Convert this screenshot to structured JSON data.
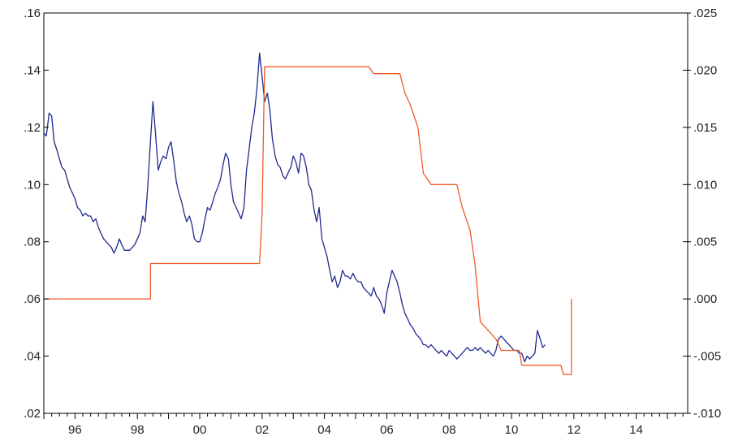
{
  "chart_data": {
    "type": "line",
    "title": "",
    "xlabel": "",
    "ylabel": "",
    "x_range": [
      1995.0,
      2015.65
    ],
    "ylim_left": [
      0.02,
      0.16
    ],
    "ylim_right": [
      -0.01,
      0.025
    ],
    "x_tick_labels": [
      {
        "x": 1996,
        "label": "96"
      },
      {
        "x": 1998,
        "label": "98"
      },
      {
        "x": 2000,
        "label": "00"
      },
      {
        "x": 2002,
        "label": "02"
      },
      {
        "x": 2004,
        "label": "04"
      },
      {
        "x": 2006,
        "label": "06"
      },
      {
        "x": 2008,
        "label": "08"
      },
      {
        "x": 2010,
        "label": "10"
      },
      {
        "x": 2012,
        "label": "12"
      },
      {
        "x": 2014,
        "label": "14"
      }
    ],
    "y_ticks_left": [
      {
        "v": 0.16,
        "label": ".16"
      },
      {
        "v": 0.14,
        "label": ".14"
      },
      {
        "v": 0.12,
        "label": ".12"
      },
      {
        "v": 0.1,
        "label": ".10"
      },
      {
        "v": 0.08,
        "label": ".08"
      },
      {
        "v": 0.06,
        "label": ".06"
      },
      {
        "v": 0.04,
        "label": ".04"
      },
      {
        "v": 0.02,
        "label": ".02"
      }
    ],
    "y_ticks_right": [
      {
        "v": 0.025,
        "label": ".025"
      },
      {
        "v": 0.02,
        "label": ".020"
      },
      {
        "v": 0.015,
        "label": ".015"
      },
      {
        "v": 0.01,
        "label": ".010"
      },
      {
        "v": 0.005,
        "label": ".005"
      },
      {
        "v": 0.0,
        "label": ".000"
      },
      {
        "v": -0.005,
        "label": "-.005"
      },
      {
        "v": -0.01,
        "label": "-.010"
      }
    ],
    "grid": false,
    "series": [
      {
        "axis": "left",
        "color": "#1f2a8c",
        "points": [
          [
            1995.0,
            0.118
          ],
          [
            1995.08,
            0.117
          ],
          [
            1995.17,
            0.125
          ],
          [
            1995.25,
            0.124
          ],
          [
            1995.33,
            0.115
          ],
          [
            1995.42,
            0.112
          ],
          [
            1995.5,
            0.109
          ],
          [
            1995.58,
            0.106
          ],
          [
            1995.67,
            0.105
          ],
          [
            1995.75,
            0.102
          ],
          [
            1995.83,
            0.099
          ],
          [
            1995.92,
            0.097
          ],
          [
            1996.0,
            0.095
          ],
          [
            1996.08,
            0.092
          ],
          [
            1996.17,
            0.091
          ],
          [
            1996.25,
            0.089
          ],
          [
            1996.33,
            0.09
          ],
          [
            1996.42,
            0.089
          ],
          [
            1996.5,
            0.089
          ],
          [
            1996.58,
            0.087
          ],
          [
            1996.67,
            0.088
          ],
          [
            1996.75,
            0.085
          ],
          [
            1996.83,
            0.083
          ],
          [
            1996.92,
            0.081
          ],
          [
            1997.0,
            0.08
          ],
          [
            1997.08,
            0.079
          ],
          [
            1997.17,
            0.078
          ],
          [
            1997.25,
            0.076
          ],
          [
            1997.33,
            0.078
          ],
          [
            1997.42,
            0.081
          ],
          [
            1997.5,
            0.079
          ],
          [
            1997.58,
            0.077
          ],
          [
            1997.67,
            0.077
          ],
          [
            1997.75,
            0.077
          ],
          [
            1997.83,
            0.078
          ],
          [
            1997.92,
            0.079
          ],
          [
            1998.0,
            0.081
          ],
          [
            1998.08,
            0.083
          ],
          [
            1998.17,
            0.089
          ],
          [
            1998.25,
            0.087
          ],
          [
            1998.33,
            0.099
          ],
          [
            1998.42,
            0.115
          ],
          [
            1998.5,
            0.129
          ],
          [
            1998.58,
            0.118
          ],
          [
            1998.67,
            0.105
          ],
          [
            1998.75,
            0.108
          ],
          [
            1998.83,
            0.11
          ],
          [
            1998.92,
            0.109
          ],
          [
            1999.0,
            0.113
          ],
          [
            1999.08,
            0.115
          ],
          [
            1999.17,
            0.108
          ],
          [
            1999.25,
            0.101
          ],
          [
            1999.33,
            0.097
          ],
          [
            1999.42,
            0.094
          ],
          [
            1999.5,
            0.09
          ],
          [
            1999.58,
            0.087
          ],
          [
            1999.67,
            0.089
          ],
          [
            1999.75,
            0.086
          ],
          [
            1999.83,
            0.081
          ],
          [
            1999.92,
            0.08
          ],
          [
            2000.0,
            0.08
          ],
          [
            2000.08,
            0.083
          ],
          [
            2000.17,
            0.088
          ],
          [
            2000.25,
            0.092
          ],
          [
            2000.33,
            0.091
          ],
          [
            2000.42,
            0.094
          ],
          [
            2000.5,
            0.097
          ],
          [
            2000.58,
            0.099
          ],
          [
            2000.67,
            0.102
          ],
          [
            2000.75,
            0.107
          ],
          [
            2000.83,
            0.111
          ],
          [
            2000.92,
            0.109
          ],
          [
            2001.0,
            0.1
          ],
          [
            2001.08,
            0.094
          ],
          [
            2001.17,
            0.092
          ],
          [
            2001.25,
            0.09
          ],
          [
            2001.33,
            0.088
          ],
          [
            2001.42,
            0.092
          ],
          [
            2001.5,
            0.105
          ],
          [
            2001.58,
            0.112
          ],
          [
            2001.67,
            0.12
          ],
          [
            2001.75,
            0.125
          ],
          [
            2001.83,
            0.133
          ],
          [
            2001.92,
            0.146
          ],
          [
            2002.0,
            0.138
          ],
          [
            2002.08,
            0.129
          ],
          [
            2002.17,
            0.132
          ],
          [
            2002.25,
            0.126
          ],
          [
            2002.33,
            0.116
          ],
          [
            2002.42,
            0.11
          ],
          [
            2002.5,
            0.107
          ],
          [
            2002.58,
            0.106
          ],
          [
            2002.67,
            0.103
          ],
          [
            2002.75,
            0.102
          ],
          [
            2002.83,
            0.104
          ],
          [
            2002.92,
            0.106
          ],
          [
            2003.0,
            0.11
          ],
          [
            2003.08,
            0.108
          ],
          [
            2003.17,
            0.104
          ],
          [
            2003.25,
            0.111
          ],
          [
            2003.33,
            0.11
          ],
          [
            2003.42,
            0.106
          ],
          [
            2003.5,
            0.1
          ],
          [
            2003.58,
            0.098
          ],
          [
            2003.67,
            0.091
          ],
          [
            2003.75,
            0.087
          ],
          [
            2003.83,
            0.092
          ],
          [
            2003.92,
            0.081
          ],
          [
            2004.0,
            0.078
          ],
          [
            2004.08,
            0.075
          ],
          [
            2004.17,
            0.07
          ],
          [
            2004.25,
            0.066
          ],
          [
            2004.33,
            0.068
          ],
          [
            2004.42,
            0.064
          ],
          [
            2004.5,
            0.066
          ],
          [
            2004.58,
            0.07
          ],
          [
            2004.67,
            0.068
          ],
          [
            2004.75,
            0.068
          ],
          [
            2004.83,
            0.067
          ],
          [
            2004.92,
            0.069
          ],
          [
            2005.0,
            0.067
          ],
          [
            2005.08,
            0.066
          ],
          [
            2005.17,
            0.066
          ],
          [
            2005.25,
            0.064
          ],
          [
            2005.33,
            0.063
          ],
          [
            2005.42,
            0.062
          ],
          [
            2005.5,
            0.061
          ],
          [
            2005.58,
            0.064
          ],
          [
            2005.67,
            0.061
          ],
          [
            2005.75,
            0.06
          ],
          [
            2005.83,
            0.058
          ],
          [
            2005.92,
            0.055
          ],
          [
            2006.0,
            0.062
          ],
          [
            2006.08,
            0.066
          ],
          [
            2006.17,
            0.07
          ],
          [
            2006.25,
            0.068
          ],
          [
            2006.33,
            0.066
          ],
          [
            2006.42,
            0.062
          ],
          [
            2006.5,
            0.058
          ],
          [
            2006.58,
            0.055
          ],
          [
            2006.67,
            0.053
          ],
          [
            2006.75,
            0.051
          ],
          [
            2006.83,
            0.05
          ],
          [
            2006.92,
            0.048
          ],
          [
            2007.0,
            0.047
          ],
          [
            2007.08,
            0.046
          ],
          [
            2007.17,
            0.044
          ],
          [
            2007.25,
            0.044
          ],
          [
            2007.33,
            0.043
          ],
          [
            2007.42,
            0.044
          ],
          [
            2007.5,
            0.043
          ],
          [
            2007.58,
            0.042
          ],
          [
            2007.67,
            0.041
          ],
          [
            2007.75,
            0.042
          ],
          [
            2007.83,
            0.041
          ],
          [
            2007.92,
            0.04
          ],
          [
            2008.0,
            0.042
          ],
          [
            2008.08,
            0.041
          ],
          [
            2008.17,
            0.04
          ],
          [
            2008.25,
            0.039
          ],
          [
            2008.33,
            0.04
          ],
          [
            2008.42,
            0.041
          ],
          [
            2008.5,
            0.042
          ],
          [
            2008.58,
            0.043
          ],
          [
            2008.67,
            0.042
          ],
          [
            2008.75,
            0.042
          ],
          [
            2008.83,
            0.043
          ],
          [
            2008.92,
            0.042
          ],
          [
            2009.0,
            0.043
          ],
          [
            2009.08,
            0.042
          ],
          [
            2009.17,
            0.041
          ],
          [
            2009.25,
            0.042
          ],
          [
            2009.33,
            0.041
          ],
          [
            2009.42,
            0.04
          ],
          [
            2009.5,
            0.042
          ],
          [
            2009.58,
            0.046
          ],
          [
            2009.67,
            0.047
          ],
          [
            2009.75,
            0.046
          ],
          [
            2009.83,
            0.045
          ],
          [
            2009.92,
            0.044
          ],
          [
            2010.0,
            0.043
          ],
          [
            2010.08,
            0.042
          ],
          [
            2010.17,
            0.042
          ],
          [
            2010.25,
            0.041
          ],
          [
            2010.33,
            0.041
          ],
          [
            2010.42,
            0.038
          ],
          [
            2010.5,
            0.04
          ],
          [
            2010.58,
            0.039
          ],
          [
            2010.67,
            0.04
          ],
          [
            2010.75,
            0.041
          ],
          [
            2010.83,
            0.049
          ],
          [
            2010.92,
            0.046
          ],
          [
            2011.0,
            0.043
          ],
          [
            2011.08,
            0.044
          ]
        ]
      },
      {
        "axis": "right",
        "color": "#f05a28",
        "step": true,
        "points": [
          [
            1995.0,
            0.0
          ],
          [
            1998.42,
            0.0
          ],
          [
            1998.42,
            0.0031
          ],
          [
            2001.92,
            0.0031
          ],
          [
            2002.0,
            0.0075
          ],
          [
            2002.08,
            0.0203
          ],
          [
            2005.42,
            0.0203
          ],
          [
            2005.58,
            0.0197
          ],
          [
            2006.42,
            0.0197
          ],
          [
            2006.58,
            0.018
          ],
          [
            2006.75,
            0.017
          ],
          [
            2007.0,
            0.015
          ],
          [
            2007.17,
            0.011
          ],
          [
            2007.42,
            0.01
          ],
          [
            2008.25,
            0.01
          ],
          [
            2008.42,
            0.008
          ],
          [
            2008.67,
            0.006
          ],
          [
            2008.83,
            0.003
          ],
          [
            2009.0,
            -0.002
          ],
          [
            2009.5,
            -0.0035
          ],
          [
            2009.67,
            -0.0045
          ],
          [
            2010.25,
            -0.0045
          ],
          [
            2010.33,
            -0.0058
          ],
          [
            2011.58,
            -0.0058
          ],
          [
            2011.67,
            -0.0066
          ],
          [
            2011.92,
            -0.0066
          ],
          [
            2011.92,
            0.0
          ]
        ]
      }
    ]
  }
}
